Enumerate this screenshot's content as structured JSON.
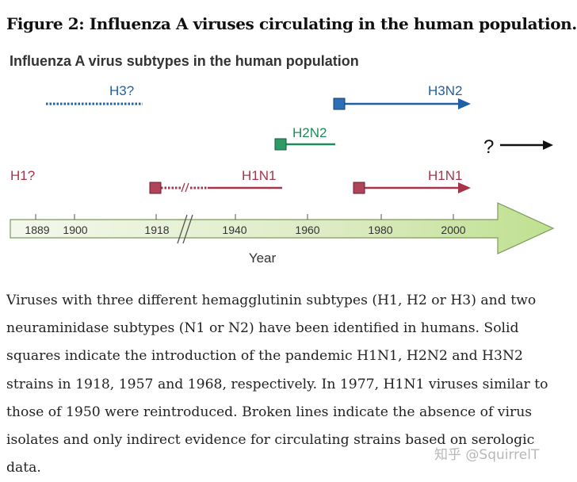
{
  "figure_title": "Figure 2: Influenza A viruses circulating in the human population.",
  "diagram_title": "Influenza A virus subtypes in the human population",
  "timeline": {
    "tick_labels": [
      "1889",
      "1900",
      "1918",
      "1940",
      "1960",
      "1980",
      "2000"
    ],
    "axis_label": "Year",
    "colors": {
      "arrow_fill": "#dfeec8",
      "arrow_stroke": "#6a8a4a"
    }
  },
  "subtypes": [
    {
      "label": "H3?",
      "color": "#1f5fa8",
      "style": "dotted"
    },
    {
      "label": "H3N2",
      "color": "#1f5fa8",
      "style": "solid-arrow",
      "start_marker": true
    },
    {
      "label": "H2N2",
      "color": "#1f8a5a",
      "style": "solid",
      "start_marker": true
    },
    {
      "label": "H1?",
      "color": "#a8344a",
      "style": "text-only"
    },
    {
      "label": "H1N1",
      "color": "#a8344a",
      "style": "broken-then-solid",
      "start_marker": true
    },
    {
      "label": "H1N1",
      "color": "#a8344a",
      "style": "solid-arrow",
      "start_marker": true
    }
  ],
  "unknown": {
    "label": "?",
    "color": "#111111"
  },
  "caption": "Viruses with three different hemagglutinin subtypes (H1, H2 or H3) and two neuraminidase subtypes (N1 or N2) have been identified in humans. Solid squares indicate the introduction of the pandemic H1N1, H2N2 and H3N2 strains in 1918, 1957 and 1968, respectively. In 1977, H1N1 viruses similar to those of 1950 were reintroduced. Broken lines indicate the absence of virus isolates and only indirect evidence for circulating strains based on serologic data.",
  "watermark": "知乎 @SquirrelT"
}
